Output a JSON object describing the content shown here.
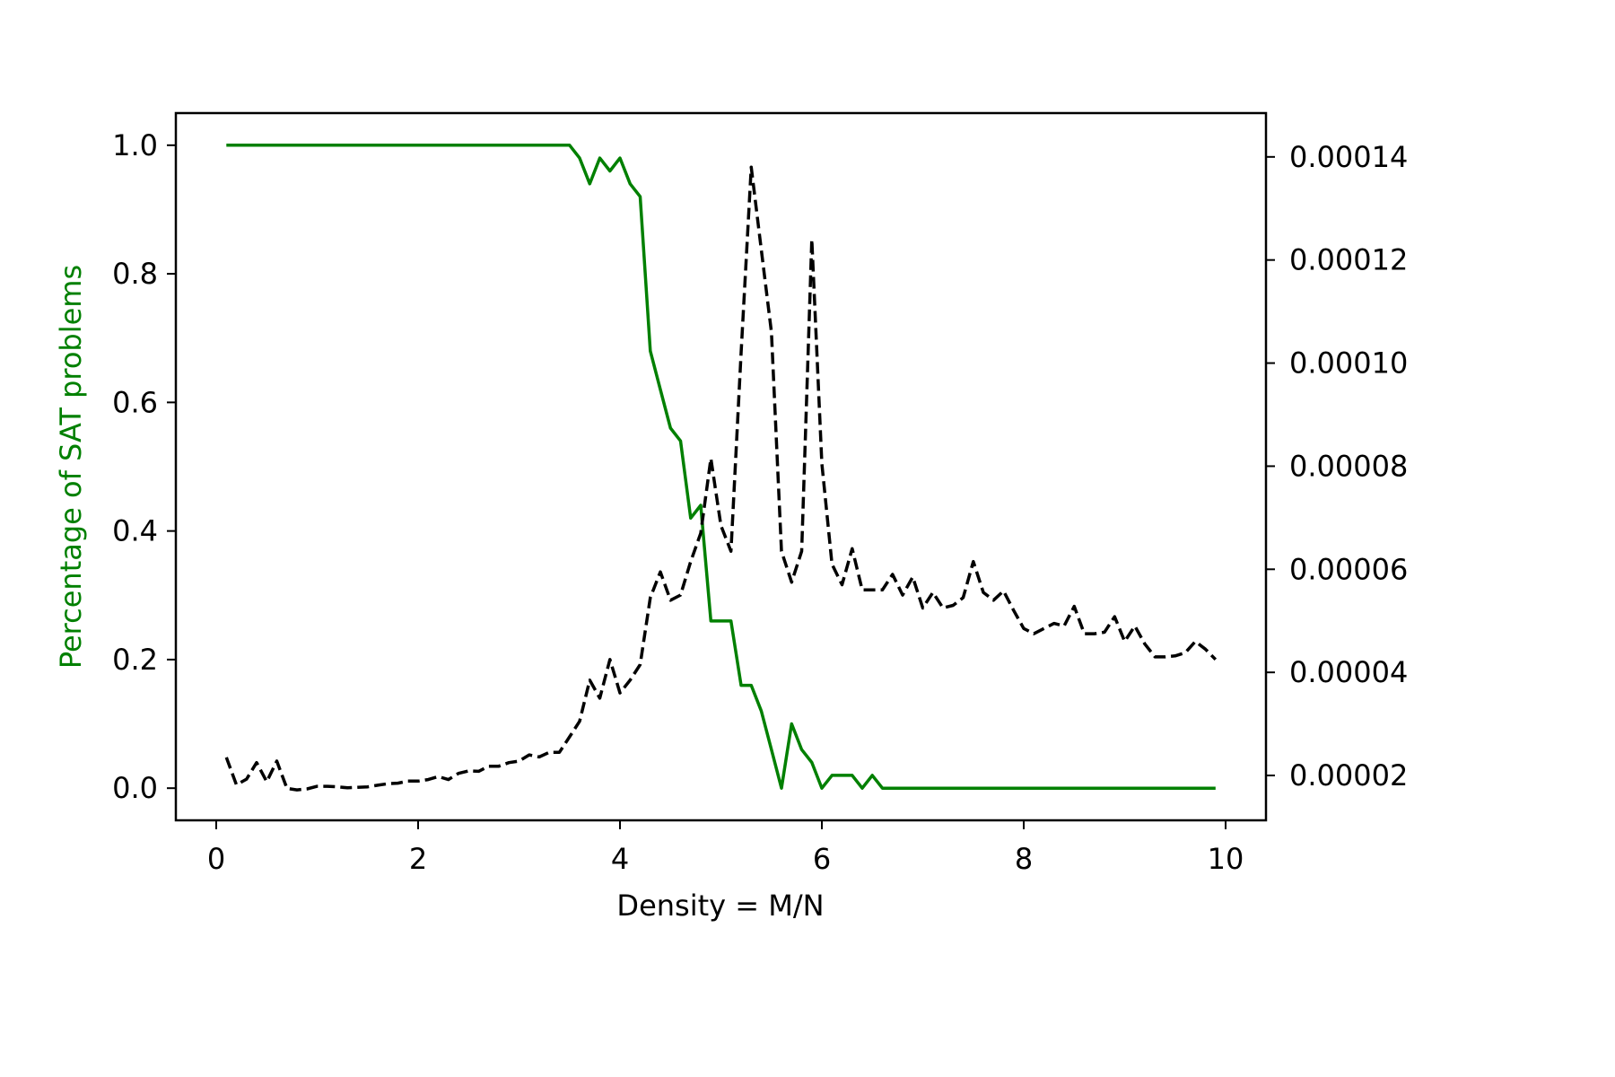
{
  "chart_data": {
    "type": "line",
    "xlabel": "Density = M/N",
    "ylabel": "Percentage of SAT problems",
    "y2label": "",
    "xlim": [
      -0.4,
      10.4
    ],
    "ylim": [
      -0.05,
      1.05
    ],
    "y2lim": [
      1.13e-05,
      0.0001485
    ],
    "x_ticks": [
      0,
      2,
      4,
      6,
      8,
      10
    ],
    "x_tick_labels": [
      "0",
      "2",
      "4",
      "6",
      "8",
      "10"
    ],
    "y_ticks": [
      0.0,
      0.2,
      0.4,
      0.6,
      0.8,
      1.0
    ],
    "y_tick_labels": [
      "0.0",
      "0.2",
      "0.4",
      "0.6",
      "0.8",
      "1.0"
    ],
    "y2_ticks": [
      2e-05,
      4e-05,
      6e-05,
      8e-05,
      0.0001,
      0.00012,
      0.00014
    ],
    "y2_tick_labels": [
      "0.00002",
      "0.00004",
      "0.00006",
      "0.00008",
      "0.00010",
      "0.00012",
      "0.00014"
    ],
    "grid": false,
    "colors": {
      "sat": "#008000",
      "time": "#000000",
      "ylabel": "#008000"
    },
    "series": [
      {
        "axis": "left",
        "style": "solid",
        "x": [
          0.1,
          3.5,
          3.6,
          3.7,
          3.8,
          3.9,
          4.0,
          4.1,
          4.2,
          4.3,
          4.4,
          4.5,
          4.6,
          4.7,
          4.8,
          4.9,
          5.0,
          5.1,
          5.2,
          5.3,
          5.4,
          5.5,
          5.6,
          5.7,
          5.8,
          5.9,
          6.0,
          6.1,
          6.2,
          6.3,
          6.4,
          6.5,
          6.6,
          9.9
        ],
        "y": [
          1.0,
          1.0,
          0.98,
          0.94,
          0.98,
          0.96,
          0.98,
          0.94,
          0.92,
          0.68,
          0.62,
          0.56,
          0.54,
          0.42,
          0.44,
          0.26,
          0.26,
          0.26,
          0.16,
          0.16,
          0.12,
          0.06,
          0.0,
          0.1,
          0.06,
          0.04,
          0.0,
          0.02,
          0.02,
          0.02,
          0.0,
          0.02,
          0.0,
          0.0
        ]
      },
      {
        "axis": "right",
        "style": "dashed",
        "x": [
          0.1,
          0.2,
          0.3,
          0.4,
          0.5,
          0.6,
          0.7,
          0.8,
          0.9,
          1.0,
          1.1,
          1.2,
          1.3,
          1.4,
          1.5,
          1.6,
          1.7,
          1.8,
          1.9,
          2.0,
          2.1,
          2.2,
          2.3,
          2.4,
          2.5,
          2.6,
          2.7,
          2.8,
          2.9,
          3.0,
          3.1,
          3.2,
          3.3,
          3.4,
          3.5,
          3.6,
          3.7,
          3.8,
          3.9,
          4.0,
          4.1,
          4.2,
          4.3,
          4.4,
          4.5,
          4.6,
          4.7,
          4.8,
          4.9,
          5.0,
          5.1,
          5.2,
          5.3,
          5.4,
          5.5,
          5.6,
          5.7,
          5.8,
          5.9,
          6.0,
          6.1,
          6.2,
          6.3,
          6.4,
          6.5,
          6.6,
          6.7,
          6.8,
          6.9,
          7.0,
          7.1,
          7.2,
          7.3,
          7.4,
          7.5,
          7.6,
          7.7,
          7.8,
          7.9,
          8.0,
          8.1,
          8.2,
          8.3,
          8.4,
          8.5,
          8.6,
          8.7,
          8.8,
          8.9,
          9.0,
          9.1,
          9.2,
          9.3,
          9.4,
          9.5,
          9.6,
          9.7,
          9.8,
          9.9
        ],
        "y": [
          2.35e-05,
          1.82e-05,
          1.93e-05,
          2.25e-05,
          1.88e-05,
          2.28e-05,
          1.75e-05,
          1.72e-05,
          1.74e-05,
          1.79e-05,
          1.79e-05,
          1.78e-05,
          1.76e-05,
          1.77e-05,
          1.78e-05,
          1.81e-05,
          1.84e-05,
          1.85e-05,
          1.89e-05,
          1.89e-05,
          1.92e-05,
          1.98e-05,
          1.92e-05,
          2.04e-05,
          2.09e-05,
          2.08e-05,
          2.18e-05,
          2.18e-05,
          2.25e-05,
          2.28e-05,
          2.4e-05,
          2.36e-05,
          2.45e-05,
          2.45e-05,
          2.75e-05,
          3.05e-05,
          3.85e-05,
          3.5e-05,
          4.25e-05,
          3.6e-05,
          3.85e-05,
          4.15e-05,
          5.45e-05,
          5.95e-05,
          5.4e-05,
          5.5e-05,
          6.15e-05,
          6.7e-05,
          8.15e-05,
          6.85e-05,
          6.35e-05,
          0.000102,
          0.000138,
          0.000122,
          0.000106,
          6.35e-05,
          5.75e-05,
          6.35e-05,
          0.000124,
          8.05e-05,
          6.1e-05,
          5.7e-05,
          6.4e-05,
          5.6e-05,
          5.6e-05,
          5.6e-05,
          5.9e-05,
          5.5e-05,
          5.85e-05,
          5.25e-05,
          5.55e-05,
          5.25e-05,
          5.3e-05,
          5.45e-05,
          6.15e-05,
          5.55e-05,
          5.4e-05,
          5.58e-05,
          5.2e-05,
          4.85e-05,
          4.75e-05,
          4.85e-05,
          4.95e-05,
          4.9e-05,
          5.28e-05,
          4.75e-05,
          4.75e-05,
          4.78e-05,
          5.08e-05,
          4.6e-05,
          4.9e-05,
          4.55e-05,
          4.3e-05,
          4.3e-05,
          4.32e-05,
          4.38e-05,
          4.6e-05,
          4.45e-05,
          4.25e-05
        ]
      }
    ]
  }
}
